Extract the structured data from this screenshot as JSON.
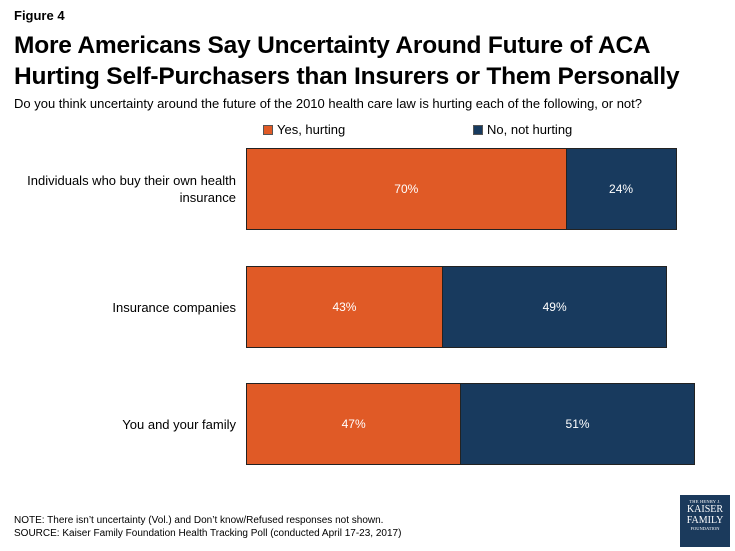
{
  "figure_label": "Figure 4",
  "title": "More Americans Say Uncertainty Around Future of ACA Hurting Self-Purchasers than Insurers or Them Personally",
  "subtitle": "Do you think uncertainty around the future of the 2010 health care law is hurting each of the following, or not?",
  "note": "NOTE: There isn’t uncertainty (Vol.) and Don’t know/Refused responses not shown.",
  "source": "SOURCE: Kaiser Family Foundation Health Tracking Poll (conducted April 17-23, 2017)",
  "logo": {
    "line1": "THE HENRY J.",
    "line2": "KAISER",
    "line3": "FAMILY",
    "line4": "FOUNDATION"
  },
  "colors": {
    "yes": "#e05a26",
    "no": "#183a5e"
  },
  "chart_data": {
    "type": "bar",
    "orientation": "horizontal",
    "stacked": true,
    "categories": [
      "Individuals who buy their own health insurance",
      "Insurance companies",
      "You and your family"
    ],
    "series": [
      {
        "name": "Yes, hurting",
        "values": [
          70,
          43,
          47
        ],
        "labels": [
          "70%",
          "43%",
          "47%"
        ]
      },
      {
        "name": "No, not hurting",
        "values": [
          24,
          49,
          51
        ],
        "labels": [
          "24%",
          "49%",
          "51%"
        ]
      }
    ],
    "xlim": [
      0,
      100
    ],
    "legend_position": "top",
    "grid": false
  }
}
